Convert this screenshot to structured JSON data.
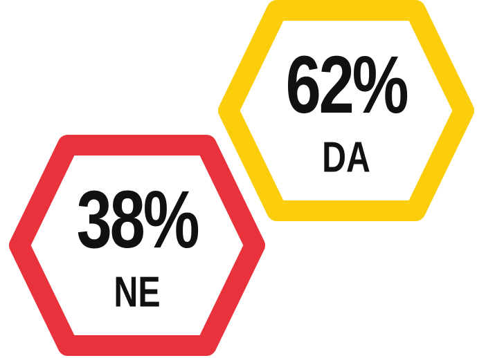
{
  "chart_data": {
    "type": "hexagon",
    "categories": [
      "NE",
      "DA"
    ],
    "values": [
      38,
      62
    ],
    "value_labels": [
      "38%",
      "62%"
    ],
    "colors": [
      "#e8333c",
      "#fbcd0b"
    ]
  }
}
